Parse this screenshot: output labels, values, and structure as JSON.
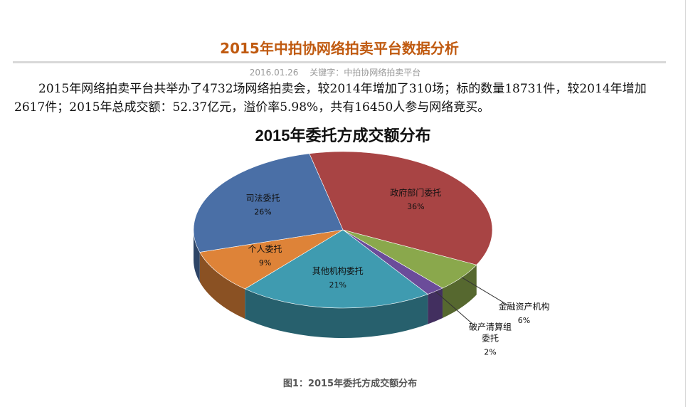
{
  "article": {
    "title": "2015年中拍协网络拍卖平台数据分析",
    "date": "2016.01.26",
    "keywords": "关键字：中拍协网络拍卖平台",
    "paragraph": "2015年网络拍卖平台共举办了4732场网络拍卖会，较2014年增加了310场；标的数量18731件，较2014年增加2617件；2015年总成交额：52.37亿元，溢价率5.98%，共有16450人参与网络竞买。",
    "caption": "图1：2015年委托方成交额分布"
  },
  "chart_data": {
    "type": "pie",
    "title": "2015年委托方成交额分布",
    "three_d": true,
    "legend": "none",
    "slices": [
      {
        "label": "政府部门委托",
        "value": 36,
        "display": "36%",
        "color": "#a84444"
      },
      {
        "label": "金融资产机构",
        "value": 6,
        "display": "6%",
        "color": "#8aa84c"
      },
      {
        "label": "破产清算组委托",
        "label_lines": [
          "破产清算组",
          "委托"
        ],
        "value": 2,
        "display": "2%",
        "color": "#6b4c9a"
      },
      {
        "label": "其他机构委托",
        "value": 21,
        "display": "21%",
        "color": "#3f9bb0"
      },
      {
        "label": "个人委托",
        "value": 9,
        "display": "9%",
        "color": "#de8338"
      },
      {
        "label": "司法委托",
        "value": 26,
        "display": "26%",
        "color": "#4a6fa6"
      }
    ]
  }
}
